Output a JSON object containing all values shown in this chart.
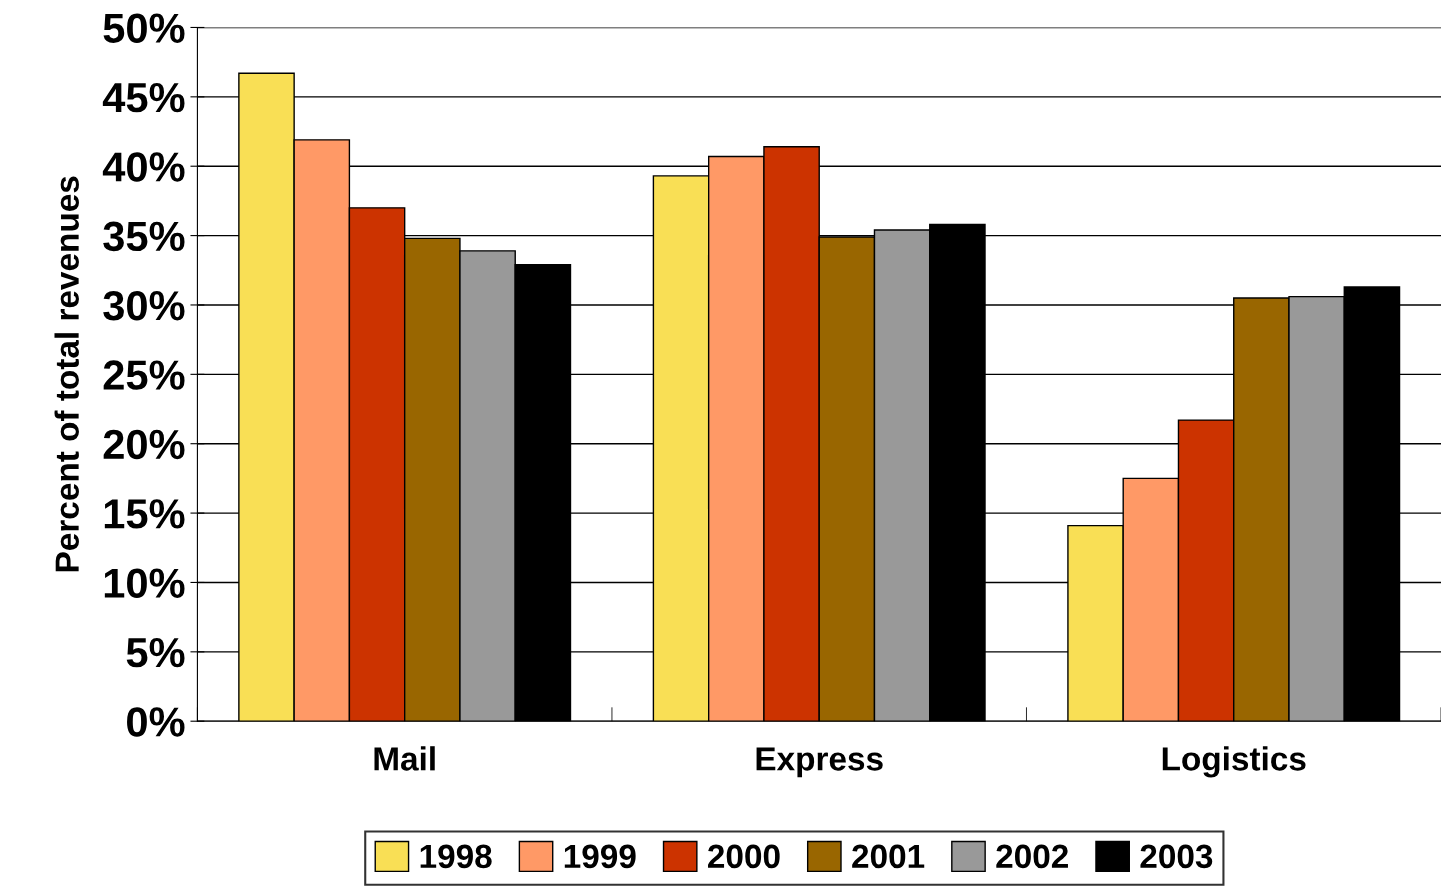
{
  "chart_data": {
    "type": "bar",
    "ylabel": "Percent of total revenues",
    "categories": [
      "Mail",
      "Express",
      "Logistics"
    ],
    "series": [
      {
        "name": "1998",
        "color": "#f9df55",
        "values": [
          46.7,
          39.3,
          14.1
        ]
      },
      {
        "name": "1999",
        "color": "#ff9966",
        "values": [
          41.9,
          40.7,
          17.5
        ]
      },
      {
        "name": "2000",
        "color": "#cc3300",
        "values": [
          37.0,
          41.4,
          21.7
        ]
      },
      {
        "name": "2001",
        "color": "#996600",
        "values": [
          34.8,
          34.9,
          30.5
        ]
      },
      {
        "name": "2002",
        "color": "#999999",
        "values": [
          33.9,
          35.4,
          30.6
        ]
      },
      {
        "name": "2003",
        "color": "#000000",
        "values": [
          32.9,
          35.8,
          31.3
        ]
      }
    ],
    "ylim": [
      0,
      50
    ],
    "yticks": [
      {
        "value": 0,
        "label": "0%"
      },
      {
        "value": 5,
        "label": "5%"
      },
      {
        "value": 10,
        "label": "10%"
      },
      {
        "value": 15,
        "label": "15%"
      },
      {
        "value": 20,
        "label": "20%"
      },
      {
        "value": 25,
        "label": "25%"
      },
      {
        "value": 30,
        "label": "30%"
      },
      {
        "value": 35,
        "label": "35%"
      },
      {
        "value": 40,
        "label": "40%"
      },
      {
        "value": 45,
        "label": "45%"
      },
      {
        "value": 50,
        "label": "50%"
      }
    ],
    "grid": "y",
    "legend": "bottom"
  }
}
